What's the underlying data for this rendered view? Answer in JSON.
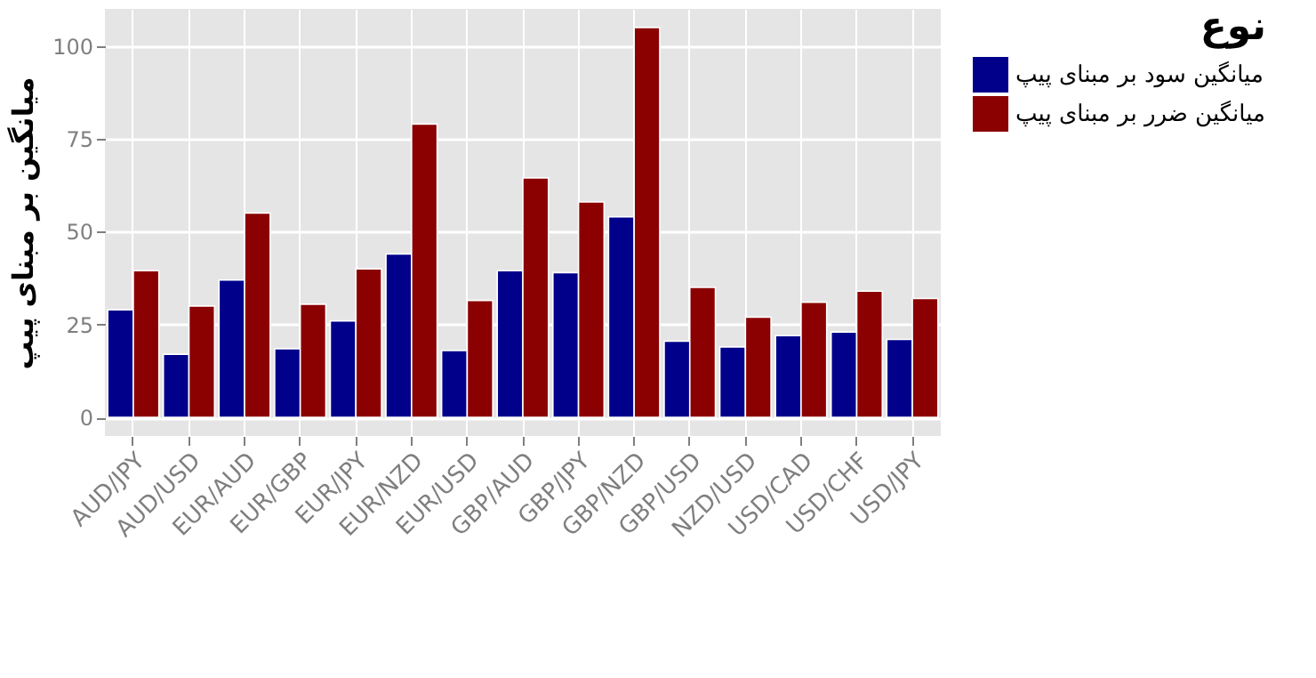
{
  "chart_data": {
    "type": "bar",
    "ylabel": "میانگین بر مبنای پیپ",
    "legend_title": "نوع",
    "categories": [
      "AUD/JPY",
      "AUD/USD",
      "EUR/AUD",
      "EUR/GBP",
      "EUR/JPY",
      "EUR/NZD",
      "EUR/USD",
      "GBP/AUD",
      "GBP/JPY",
      "GBP/NZD",
      "GBP/USD",
      "NZD/USD",
      "USD/CAD",
      "USD/CHF",
      "USD/JPY"
    ],
    "series": [
      {
        "name": "میانگین سود بر مبنای پیپ",
        "color": "#00008b",
        "values": [
          29,
          17,
          37,
          18.5,
          26,
          44,
          18,
          39.5,
          39,
          54,
          20.5,
          19,
          22,
          23,
          21
        ]
      },
      {
        "name": "میانگین ضرر بر مبنای پیپ",
        "color": "#8b0000",
        "values": [
          39.5,
          30,
          55,
          30.5,
          40,
          79,
          31.5,
          64.5,
          58,
          105,
          35,
          27,
          31,
          34,
          32
        ]
      }
    ],
    "ylim": [
      -5,
      110
    ],
    "yticks": [
      0,
      25,
      50,
      75,
      100
    ],
    "grid": true,
    "legend": "right"
  }
}
